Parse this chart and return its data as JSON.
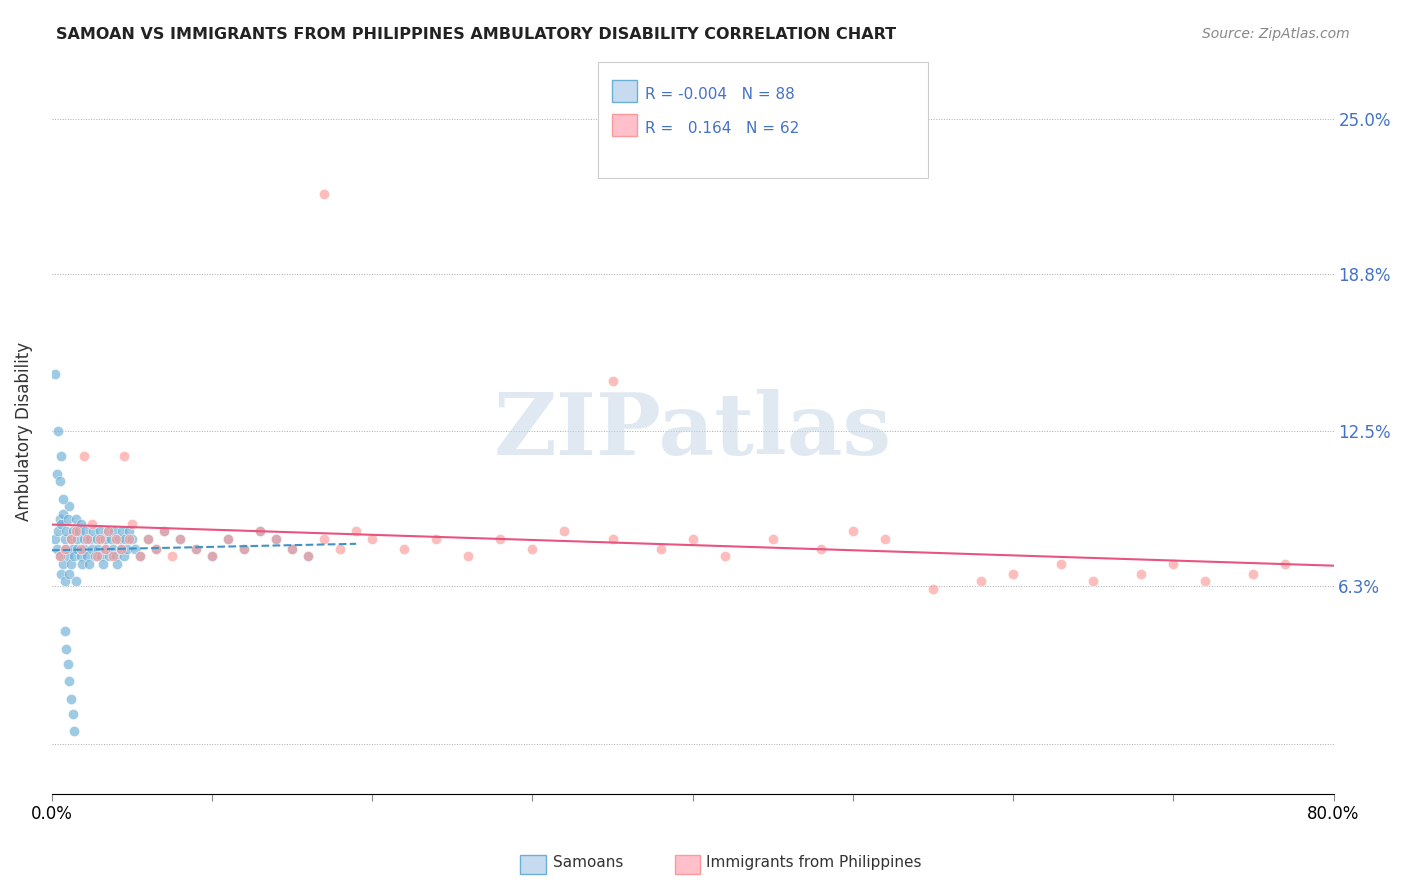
{
  "title": "SAMOAN VS IMMIGRANTS FROM PHILIPPINES AMBULATORY DISABILITY CORRELATION CHART",
  "source": "Source: ZipAtlas.com",
  "ylabel": "Ambulatory Disability",
  "ytick_labels": [
    "",
    "6.3%",
    "12.5%",
    "18.8%",
    "25.0%"
  ],
  "xmin": 0.0,
  "xmax": 0.8,
  "ymin": -0.02,
  "ymax": 0.27,
  "samoans_R": -0.004,
  "samoans_N": 88,
  "philippines_R": 0.164,
  "philippines_N": 62,
  "samoans_color": "#6baed6",
  "samoans_color_light": "#c6dbef",
  "philippines_color": "#fb9a99",
  "trendline_samoans_color": "#4292c6",
  "trendline_philippines_color": "#e75480",
  "background_color": "#ffffff",
  "watermark": "ZIPatlas",
  "samoans_x": [
    0.002,
    0.003,
    0.004,
    0.005,
    0.005,
    0.006,
    0.006,
    0.007,
    0.007,
    0.008,
    0.008,
    0.009,
    0.009,
    0.01,
    0.01,
    0.011,
    0.011,
    0.012,
    0.012,
    0.013,
    0.013,
    0.014,
    0.015,
    0.015,
    0.016,
    0.016,
    0.017,
    0.018,
    0.018,
    0.019,
    0.02,
    0.02,
    0.021,
    0.022,
    0.023,
    0.024,
    0.025,
    0.026,
    0.027,
    0.028,
    0.029,
    0.03,
    0.031,
    0.032,
    0.033,
    0.034,
    0.035,
    0.036,
    0.037,
    0.038,
    0.039,
    0.04,
    0.041,
    0.042,
    0.043,
    0.044,
    0.045,
    0.046,
    0.047,
    0.048,
    0.05,
    0.052,
    0.055,
    0.06,
    0.065,
    0.07,
    0.08,
    0.09,
    0.1,
    0.11,
    0.12,
    0.13,
    0.14,
    0.15,
    0.16,
    0.002,
    0.003,
    0.004,
    0.005,
    0.006,
    0.007,
    0.008,
    0.009,
    0.01,
    0.011,
    0.012,
    0.013,
    0.014
  ],
  "samoans_y": [
    0.082,
    0.078,
    0.085,
    0.075,
    0.09,
    0.068,
    0.088,
    0.072,
    0.092,
    0.065,
    0.082,
    0.078,
    0.085,
    0.075,
    0.09,
    0.068,
    0.095,
    0.072,
    0.082,
    0.078,
    0.085,
    0.075,
    0.09,
    0.065,
    0.082,
    0.078,
    0.085,
    0.075,
    0.088,
    0.072,
    0.082,
    0.078,
    0.085,
    0.075,
    0.072,
    0.082,
    0.078,
    0.085,
    0.075,
    0.082,
    0.078,
    0.085,
    0.075,
    0.072,
    0.082,
    0.078,
    0.085,
    0.075,
    0.082,
    0.078,
    0.085,
    0.075,
    0.072,
    0.082,
    0.078,
    0.085,
    0.075,
    0.082,
    0.078,
    0.085,
    0.082,
    0.078,
    0.075,
    0.082,
    0.078,
    0.085,
    0.082,
    0.078,
    0.075,
    0.082,
    0.078,
    0.085,
    0.082,
    0.078,
    0.075,
    0.148,
    0.108,
    0.125,
    0.105,
    0.115,
    0.098,
    0.045,
    0.038,
    0.032,
    0.025,
    0.018,
    0.012,
    0.005
  ],
  "philippines_x": [
    0.005,
    0.008,
    0.012,
    0.015,
    0.018,
    0.02,
    0.022,
    0.025,
    0.028,
    0.03,
    0.033,
    0.035,
    0.038,
    0.04,
    0.043,
    0.045,
    0.048,
    0.05,
    0.055,
    0.06,
    0.065,
    0.07,
    0.075,
    0.08,
    0.09,
    0.1,
    0.11,
    0.12,
    0.13,
    0.14,
    0.15,
    0.16,
    0.17,
    0.18,
    0.19,
    0.2,
    0.22,
    0.24,
    0.26,
    0.28,
    0.3,
    0.32,
    0.35,
    0.38,
    0.4,
    0.42,
    0.45,
    0.48,
    0.5,
    0.52,
    0.55,
    0.58,
    0.6,
    0.63,
    0.65,
    0.68,
    0.7,
    0.72,
    0.75,
    0.77,
    0.17,
    0.35
  ],
  "philippines_y": [
    0.075,
    0.078,
    0.082,
    0.085,
    0.078,
    0.115,
    0.082,
    0.088,
    0.075,
    0.082,
    0.078,
    0.085,
    0.075,
    0.082,
    0.078,
    0.115,
    0.082,
    0.088,
    0.075,
    0.082,
    0.078,
    0.085,
    0.075,
    0.082,
    0.078,
    0.075,
    0.082,
    0.078,
    0.085,
    0.082,
    0.078,
    0.075,
    0.082,
    0.078,
    0.085,
    0.082,
    0.078,
    0.082,
    0.075,
    0.082,
    0.078,
    0.085,
    0.082,
    0.078,
    0.082,
    0.075,
    0.082,
    0.078,
    0.085,
    0.082,
    0.062,
    0.065,
    0.068,
    0.072,
    0.065,
    0.068,
    0.072,
    0.065,
    0.068,
    0.072,
    0.22,
    0.145
  ]
}
